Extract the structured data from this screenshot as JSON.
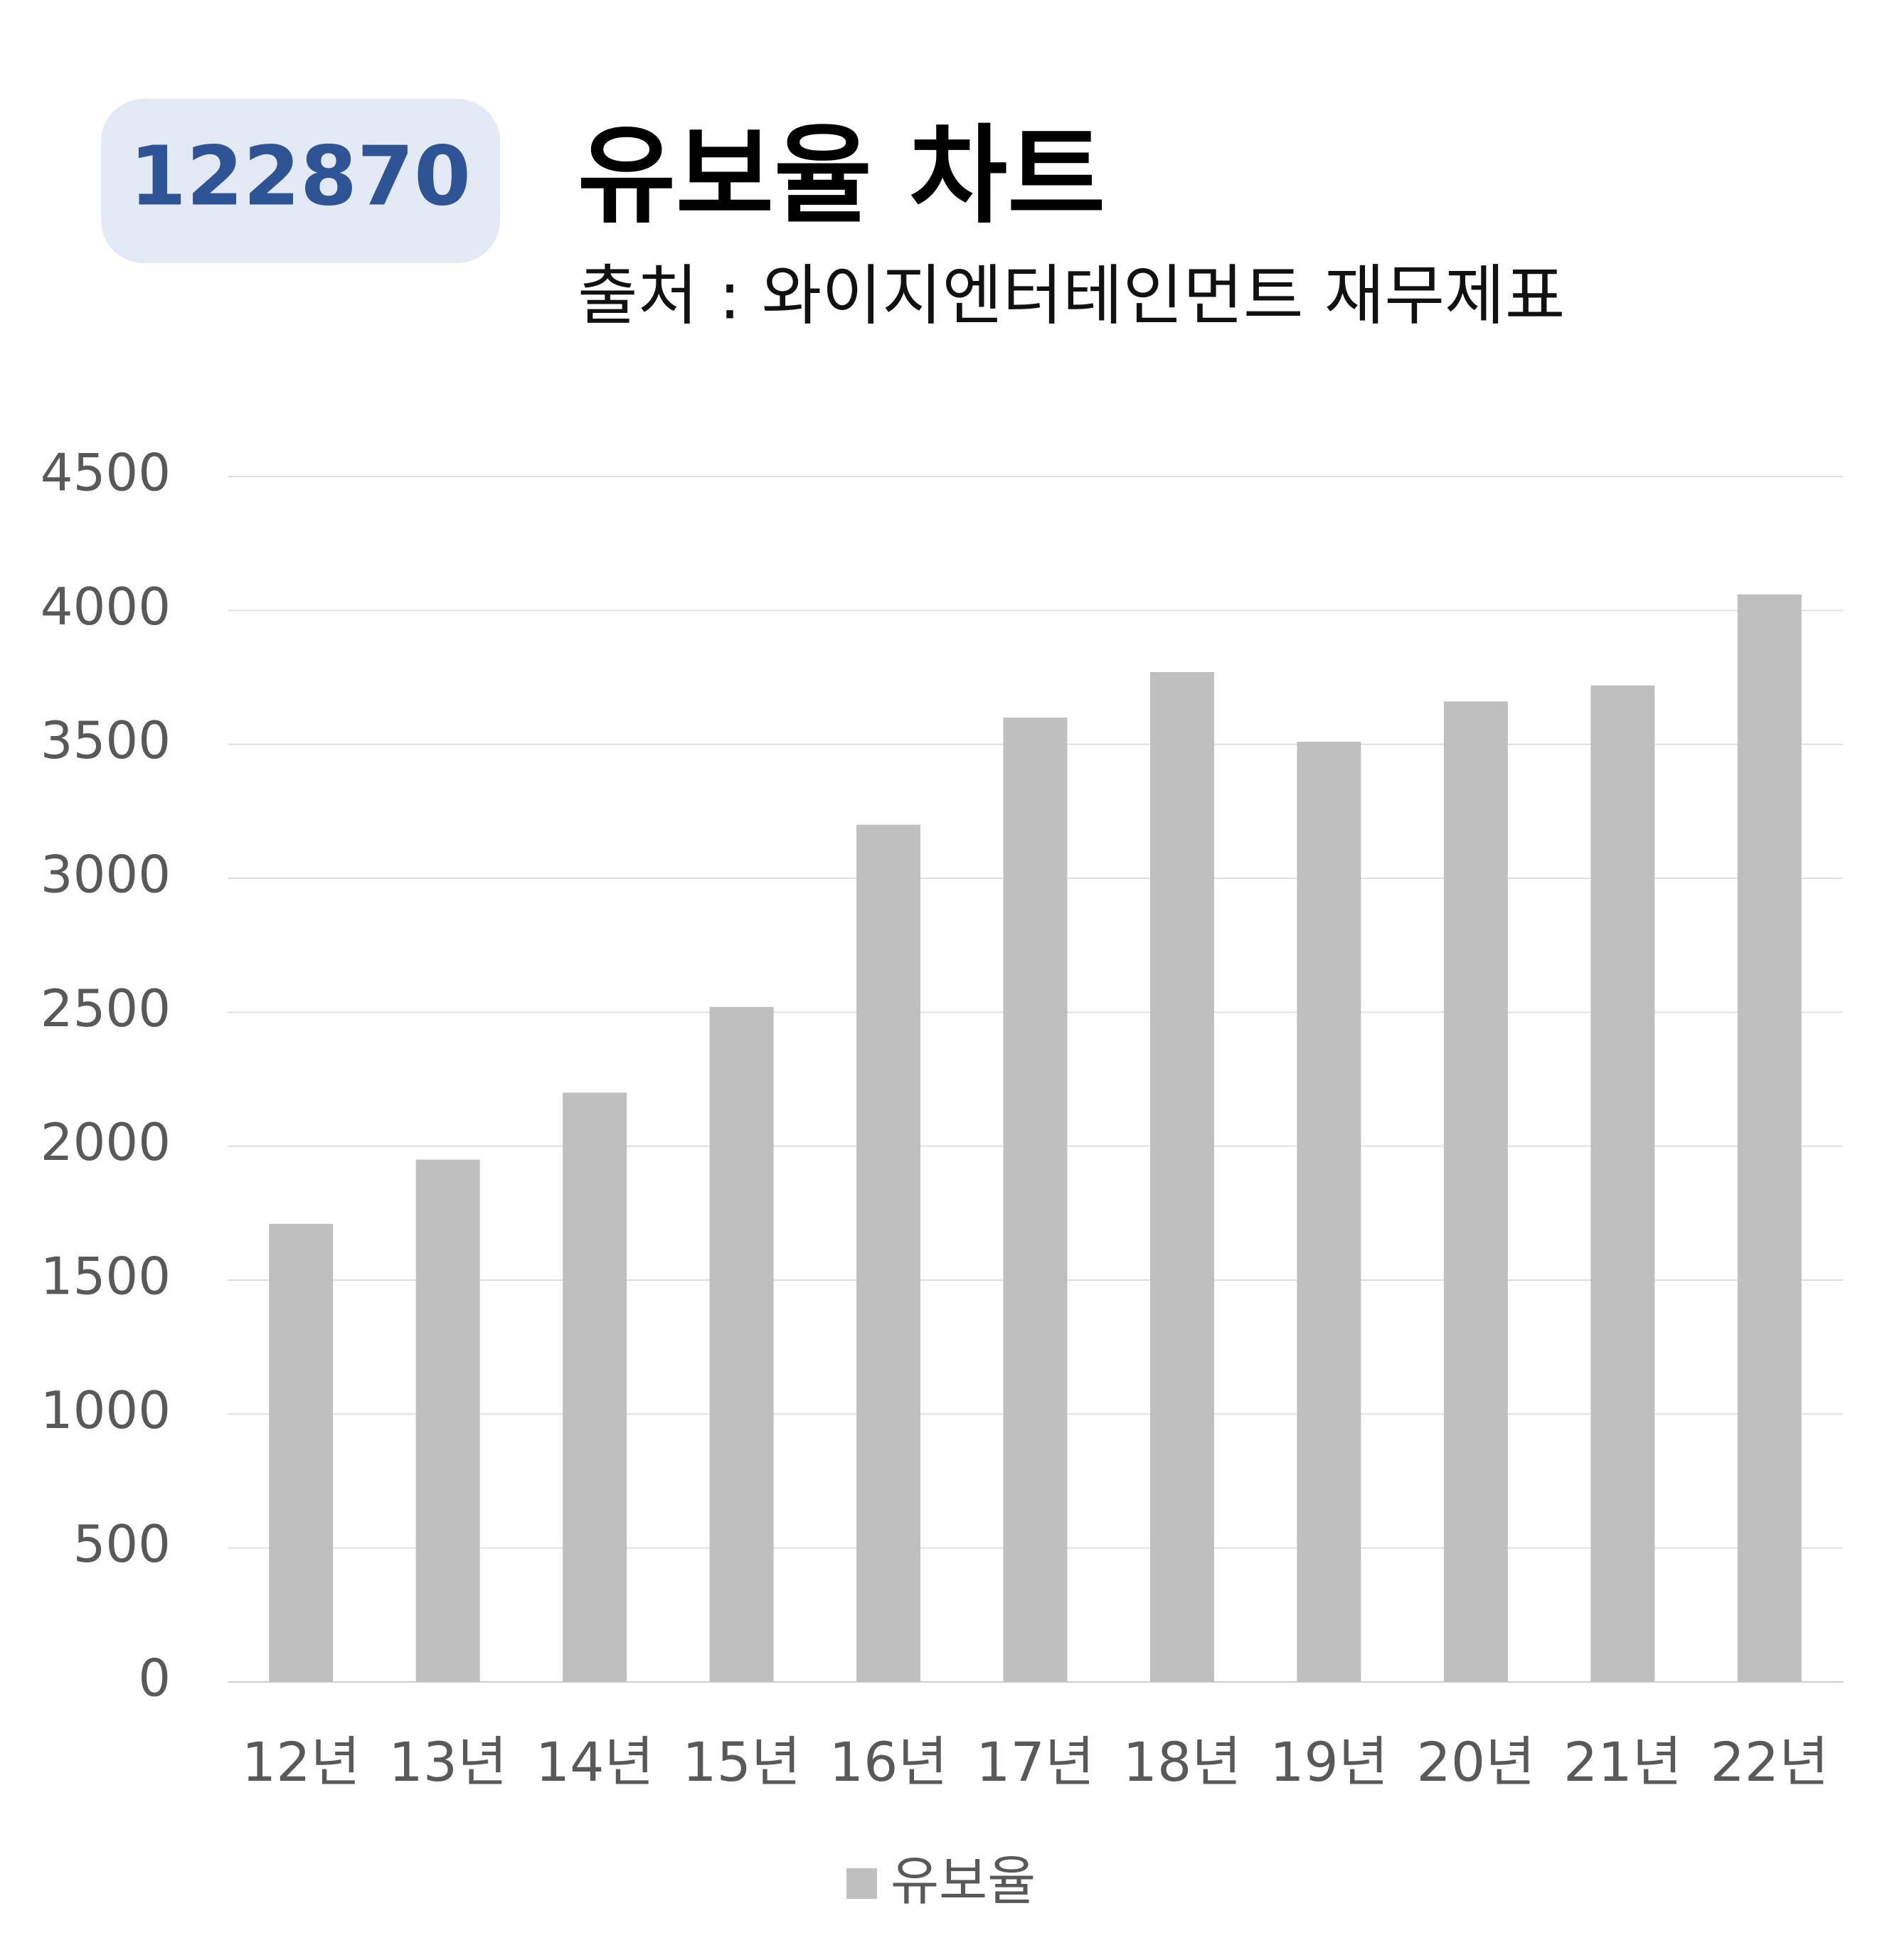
{
  "badge": "122870",
  "chart_data": {
    "type": "bar",
    "title": "유보율 차트",
    "subtitle": "출처 : 와이지엔터테인먼트 재무제표",
    "categories": [
      "12년",
      "13년",
      "14년",
      "15년",
      "16년",
      "17년",
      "18년",
      "19년",
      "20년",
      "21년",
      "22년"
    ],
    "series": [
      {
        "name": "유보율",
        "color": "#bfbfbf",
        "values": [
          1710,
          1950,
          2200,
          2520,
          3200,
          3600,
          3770,
          3510,
          3660,
          3720,
          4060
        ]
      }
    ],
    "ylim": [
      0,
      4500
    ],
    "yticks": [
      0,
      500,
      1000,
      1500,
      2000,
      2500,
      3000,
      3500,
      4000,
      4500
    ],
    "grid": true,
    "legend": "bottom"
  }
}
